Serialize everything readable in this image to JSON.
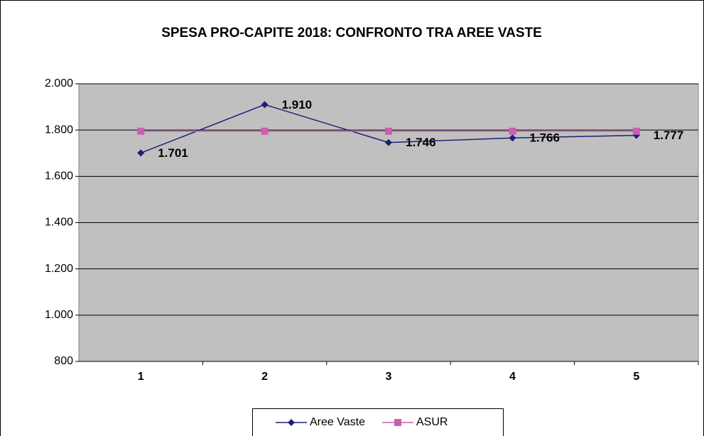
{
  "chart_data": {
    "type": "line",
    "title": "SPESA PRO-CAPITE 2018: CONFRONTO TRA  AREE VASTE",
    "categories": [
      "1",
      "2",
      "3",
      "4",
      "5"
    ],
    "series": [
      {
        "name": "Aree Vaste",
        "color": "#1f1f78",
        "marker": "diamond",
        "values": [
          1701,
          1910,
          1746,
          1766,
          1777
        ],
        "value_labels": [
          "1.701",
          "1.910",
          "1.746",
          "1.766",
          "1.777"
        ]
      },
      {
        "name": "ASUR",
        "color": "#cc5fae",
        "marker": "square",
        "values": [
          1795,
          1795,
          1795,
          1795,
          1795
        ]
      }
    ],
    "ylim": [
      800,
      2000
    ],
    "yticks": [
      {
        "value": 800,
        "label": "800"
      },
      {
        "value": 1000,
        "label": "1.000"
      },
      {
        "value": 1200,
        "label": "1.200"
      },
      {
        "value": 1400,
        "label": "1.400"
      },
      {
        "value": 1600,
        "label": "1.600"
      },
      {
        "value": 1800,
        "label": "1.800"
      },
      {
        "value": 2000,
        "label": "2.000"
      }
    ],
    "grid": true,
    "legend": "bottom"
  }
}
